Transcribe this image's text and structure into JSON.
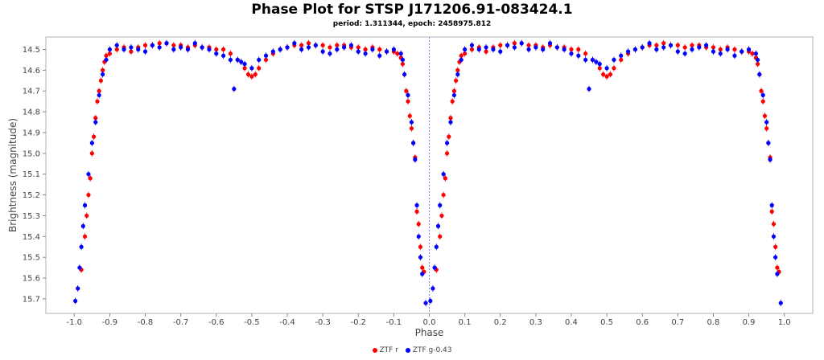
{
  "chart_data": {
    "type": "scatter",
    "title": "Phase Plot for STSP J171206.91-083424.1",
    "subtitle": "period: 1.311344, epoch: 2458975.812",
    "xlabel": "Phase",
    "ylabel": "Brightness (magnitude)",
    "xlim": [
      -1.08,
      1.08
    ],
    "ylim": [
      14.44,
      15.77
    ],
    "y_inverted": true,
    "x_ticks": [
      "-1.0",
      "-0.9",
      "-0.8",
      "-0.7",
      "-0.6",
      "-0.5",
      "-0.4",
      "-0.3",
      "-0.2",
      "-0.1",
      "0.0",
      "0.1",
      "0.2",
      "0.3",
      "0.4",
      "0.5",
      "0.6",
      "0.7",
      "0.8",
      "0.9",
      "1.0"
    ],
    "y_ticks": [
      "14.5",
      "14.6",
      "14.7",
      "14.8",
      "14.9",
      "15.0",
      "15.1",
      "15.2",
      "15.3",
      "15.4",
      "15.5",
      "15.6",
      "15.7"
    ],
    "phase_zero_line": 0.0,
    "legend_position": "bottom-center",
    "series": [
      {
        "name": "ZTF r",
        "color": "#ff0000",
        "points": [
          [
            0.02,
            15.56
          ],
          [
            0.03,
            15.4
          ],
          [
            0.035,
            15.3
          ],
          [
            0.04,
            15.2
          ],
          [
            0.045,
            15.12
          ],
          [
            0.05,
            15.0
          ],
          [
            0.055,
            14.92
          ],
          [
            0.06,
            14.83
          ],
          [
            0.065,
            14.75
          ],
          [
            0.07,
            14.7
          ],
          [
            0.075,
            14.65
          ],
          [
            0.08,
            14.6
          ],
          [
            0.085,
            14.56
          ],
          [
            0.09,
            14.53
          ],
          [
            0.1,
            14.52
          ],
          [
            0.12,
            14.5
          ],
          [
            0.14,
            14.49
          ],
          [
            0.16,
            14.51
          ],
          [
            0.18,
            14.49
          ],
          [
            0.2,
            14.48
          ],
          [
            0.22,
            14.48
          ],
          [
            0.24,
            14.47
          ],
          [
            0.26,
            14.47
          ],
          [
            0.28,
            14.48
          ],
          [
            0.3,
            14.48
          ],
          [
            0.32,
            14.49
          ],
          [
            0.34,
            14.48
          ],
          [
            0.36,
            14.49
          ],
          [
            0.38,
            14.49
          ],
          [
            0.4,
            14.5
          ],
          [
            0.42,
            14.5
          ],
          [
            0.44,
            14.52
          ],
          [
            0.46,
            14.55
          ],
          [
            0.48,
            14.59
          ],
          [
            0.49,
            14.62
          ],
          [
            0.5,
            14.63
          ],
          [
            0.51,
            14.62
          ],
          [
            0.52,
            14.59
          ],
          [
            0.54,
            14.55
          ],
          [
            0.56,
            14.52
          ],
          [
            0.58,
            14.5
          ],
          [
            0.6,
            14.49
          ],
          [
            0.62,
            14.48
          ],
          [
            0.64,
            14.48
          ],
          [
            0.66,
            14.47
          ],
          [
            0.68,
            14.48
          ],
          [
            0.7,
            14.48
          ],
          [
            0.72,
            14.49
          ],
          [
            0.74,
            14.48
          ],
          [
            0.76,
            14.48
          ],
          [
            0.78,
            14.49
          ],
          [
            0.8,
            14.49
          ],
          [
            0.82,
            14.5
          ],
          [
            0.84,
            14.49
          ],
          [
            0.86,
            14.5
          ],
          [
            0.88,
            14.51
          ],
          [
            0.9,
            14.51
          ],
          [
            0.91,
            14.52
          ],
          [
            0.92,
            14.54
          ],
          [
            0.925,
            14.57
          ],
          [
            0.93,
            14.62
          ],
          [
            0.935,
            14.7
          ],
          [
            0.94,
            14.75
          ],
          [
            0.945,
            14.82
          ],
          [
            0.95,
            14.88
          ],
          [
            0.955,
            14.95
          ],
          [
            0.96,
            15.02
          ],
          [
            0.965,
            15.28
          ],
          [
            0.97,
            15.34
          ],
          [
            0.975,
            15.45
          ],
          [
            0.98,
            15.55
          ],
          [
            0.985,
            15.57
          ]
        ]
      },
      {
        "name": "ZTF g-0.43",
        "color": "#0000ff",
        "points": [
          [
            0.003,
            15.71
          ],
          [
            0.01,
            15.65
          ],
          [
            0.015,
            15.55
          ],
          [
            0.02,
            15.45
          ],
          [
            0.025,
            15.35
          ],
          [
            0.03,
            15.25
          ],
          [
            0.04,
            15.1
          ],
          [
            0.05,
            14.95
          ],
          [
            0.06,
            14.85
          ],
          [
            0.07,
            14.72
          ],
          [
            0.08,
            14.62
          ],
          [
            0.09,
            14.55
          ],
          [
            0.1,
            14.5
          ],
          [
            0.12,
            14.48
          ],
          [
            0.14,
            14.5
          ],
          [
            0.16,
            14.49
          ],
          [
            0.18,
            14.5
          ],
          [
            0.2,
            14.51
          ],
          [
            0.22,
            14.48
          ],
          [
            0.24,
            14.49
          ],
          [
            0.26,
            14.47
          ],
          [
            0.28,
            14.5
          ],
          [
            0.3,
            14.49
          ],
          [
            0.32,
            14.5
          ],
          [
            0.34,
            14.47
          ],
          [
            0.36,
            14.49
          ],
          [
            0.38,
            14.5
          ],
          [
            0.4,
            14.52
          ],
          [
            0.42,
            14.53
          ],
          [
            0.44,
            14.55
          ],
          [
            0.45,
            14.69
          ],
          [
            0.46,
            14.55
          ],
          [
            0.47,
            14.56
          ],
          [
            0.48,
            14.57
          ],
          [
            0.5,
            14.59
          ],
          [
            0.52,
            14.55
          ],
          [
            0.54,
            14.53
          ],
          [
            0.56,
            14.51
          ],
          [
            0.58,
            14.5
          ],
          [
            0.6,
            14.49
          ],
          [
            0.62,
            14.47
          ],
          [
            0.64,
            14.5
          ],
          [
            0.66,
            14.49
          ],
          [
            0.68,
            14.48
          ],
          [
            0.7,
            14.51
          ],
          [
            0.72,
            14.52
          ],
          [
            0.74,
            14.5
          ],
          [
            0.76,
            14.49
          ],
          [
            0.78,
            14.48
          ],
          [
            0.8,
            14.51
          ],
          [
            0.82,
            14.52
          ],
          [
            0.84,
            14.5
          ],
          [
            0.86,
            14.53
          ],
          [
            0.88,
            14.51
          ],
          [
            0.9,
            14.5
          ],
          [
            0.92,
            14.52
          ],
          [
            0.925,
            14.55
          ],
          [
            0.93,
            14.62
          ],
          [
            0.94,
            14.72
          ],
          [
            0.95,
            14.85
          ],
          [
            0.955,
            14.95
          ],
          [
            0.96,
            15.03
          ],
          [
            0.965,
            15.25
          ],
          [
            0.97,
            15.4
          ],
          [
            0.975,
            15.5
          ],
          [
            0.98,
            15.58
          ],
          [
            0.99,
            15.72
          ]
        ]
      }
    ]
  }
}
